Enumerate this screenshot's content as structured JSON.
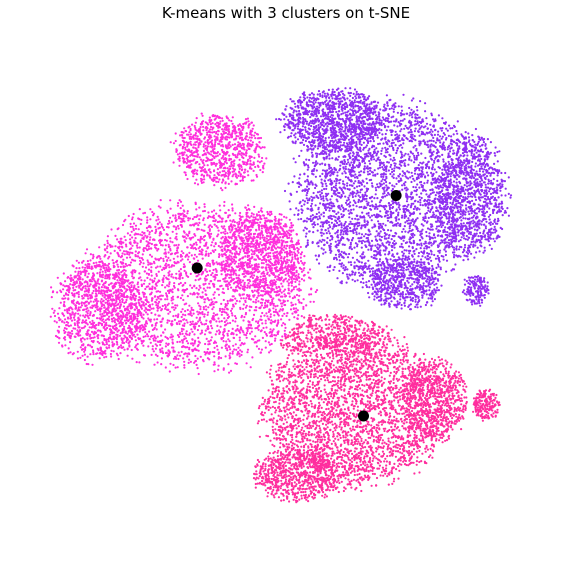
{
  "chart_data": {
    "type": "scatter",
    "title": "K-means with 3 clusters on t-SNE",
    "xlabel": "",
    "ylabel": "",
    "axes_visible": false,
    "grid": false,
    "legend": "none",
    "xlim": [
      0,
      100
    ],
    "ylim": [
      0,
      100
    ],
    "series": [
      {
        "cluster": 0,
        "color": "#ff2fdc",
        "approx_points": 5200,
        "regions": [
          {
            "cx": 33,
            "cy": 52,
            "rx": 22,
            "ry": 16,
            "w": 3
          },
          {
            "cx": 37,
            "cy": 79,
            "rx": 9,
            "ry": 7,
            "w": 1
          },
          {
            "cx": 13,
            "cy": 47,
            "rx": 9,
            "ry": 10,
            "w": 1.2
          },
          {
            "cx": 45,
            "cy": 58,
            "rx": 8,
            "ry": 9,
            "w": 1
          }
        ],
        "centroid": {
          "x": 32.4,
          "y": 55.4
        }
      },
      {
        "cluster": 1,
        "color": "#8f2ff2",
        "approx_points": 5600,
        "regions": [
          {
            "cx": 70,
            "cy": 70,
            "rx": 18,
            "ry": 18,
            "w": 3
          },
          {
            "cx": 59,
            "cy": 85,
            "rx": 10,
            "ry": 6,
            "w": 1
          },
          {
            "cx": 86,
            "cy": 70,
            "rx": 7,
            "ry": 12,
            "w": 1
          },
          {
            "cx": 73,
            "cy": 52,
            "rx": 7,
            "ry": 5,
            "w": 0.5
          },
          {
            "cx": 87,
            "cy": 51,
            "rx": 2.5,
            "ry": 3,
            "w": 0.15
          }
        ],
        "centroid": {
          "x": 71.4,
          "y": 69.9
        }
      },
      {
        "cluster": 2,
        "color": "#ff2e9e",
        "approx_points": 5000,
        "regions": [
          {
            "cx": 63,
            "cy": 27,
            "rx": 17,
            "ry": 15,
            "w": 3
          },
          {
            "cx": 52,
            "cy": 14,
            "rx": 8,
            "ry": 5,
            "w": 0.7
          },
          {
            "cx": 79,
            "cy": 29,
            "rx": 6,
            "ry": 8,
            "w": 0.8
          },
          {
            "cx": 89,
            "cy": 28,
            "rx": 2.5,
            "ry": 3,
            "w": 0.2
          },
          {
            "cx": 58,
            "cy": 42,
            "rx": 12,
            "ry": 4,
            "w": 0.6
          }
        ],
        "centroid": {
          "x": 65.0,
          "y": 25.8
        }
      }
    ],
    "centroid_color": "#000000"
  }
}
